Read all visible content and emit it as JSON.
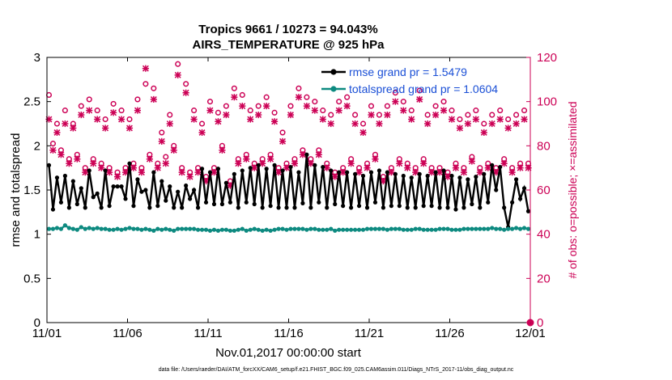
{
  "chart_data": {
    "type": "line",
    "title": "Tropics 9661 / 10273 = 94.043%",
    "subtitle": "AIRS_TEMPERATURE @ 925 hPa",
    "xlabel": "Nov.01,2017 00:00:00 start",
    "ylabel": "rmse and totalspread",
    "y2label": "# of obs: o=possible; ×=assimilated",
    "x_ticks": [
      "11/01",
      "11/06",
      "11/11",
      "11/16",
      "11/21",
      "11/26",
      "12/01"
    ],
    "x_range_days": [
      0,
      30
    ],
    "ylim": [
      0,
      3
    ],
    "y_ticks": [
      "0",
      "0.5",
      "1",
      "1.5",
      "2",
      "2.5",
      "3"
    ],
    "y2lim": [
      0,
      120
    ],
    "y2_ticks": [
      "0",
      "20",
      "40",
      "60",
      "80",
      "100",
      "120"
    ],
    "legend": [
      "rmse grand pr = 1.5479",
      "totalspread grand pr = 1.0604"
    ],
    "footer": "data file: /Users/raeder/DAI/ATM_forcXX/CAM6_setup/f.e21.FHIST_BGC.f09_025.CAM6assim.011/Diags_NTrS_2017-11/obs_diag_output.nc",
    "n_samples": 120,
    "series": [
      {
        "name": "rmse",
        "color": "#000000",
        "values": [
          1.78,
          1.28,
          1.64,
          1.36,
          1.66,
          1.3,
          1.6,
          1.34,
          1.52,
          1.3,
          1.72,
          1.42,
          1.46,
          1.3,
          1.72,
          1.32,
          1.54,
          1.54,
          1.54,
          1.4,
          1.8,
          1.32,
          1.62,
          1.48,
          1.5,
          1.3,
          1.7,
          1.32,
          1.6,
          1.38,
          1.54,
          1.3,
          1.48,
          1.3,
          1.55,
          1.4,
          1.5,
          1.3,
          1.74,
          1.36,
          1.7,
          1.34,
          1.74,
          1.34,
          1.58,
          1.36,
          1.68,
          1.3,
          1.72,
          1.36,
          1.75,
          1.34,
          1.78,
          1.3,
          1.74,
          1.32,
          1.78,
          1.3,
          1.72,
          1.3,
          1.76,
          1.3,
          1.7,
          1.35,
          1.9,
          1.3,
          1.78,
          1.36,
          1.76,
          1.3,
          1.72,
          1.34,
          1.7,
          1.32,
          1.7,
          1.3,
          1.68,
          1.32,
          1.66,
          1.3,
          1.7,
          1.36,
          1.72,
          1.3,
          1.7,
          1.32,
          1.68,
          1.32,
          1.66,
          1.3,
          1.64,
          1.3,
          1.68,
          1.32,
          1.66,
          1.32,
          1.7,
          1.3,
          1.72,
          1.3,
          1.66,
          1.28,
          1.64,
          1.3,
          1.62,
          1.34,
          1.65,
          1.3,
          1.68,
          1.36,
          1.78,
          1.5,
          1.76,
          1.3,
          1.08,
          1.36,
          1.62,
          1.4,
          1.52,
          1.26
        ]
      },
      {
        "name": "totalspread",
        "color": "#0d8a80",
        "values": [
          1.06,
          1.06,
          1.07,
          1.06,
          1.1,
          1.07,
          1.06,
          1.05,
          1.08,
          1.06,
          1.07,
          1.06,
          1.07,
          1.06,
          1.06,
          1.05,
          1.05,
          1.06,
          1.05,
          1.06,
          1.07,
          1.06,
          1.06,
          1.05,
          1.06,
          1.05,
          1.04,
          1.06,
          1.05,
          1.06,
          1.05,
          1.04,
          1.06,
          1.06,
          1.06,
          1.06,
          1.06,
          1.05,
          1.05,
          1.05,
          1.04,
          1.05,
          1.04,
          1.05,
          1.05,
          1.04,
          1.04,
          1.05,
          1.06,
          1.04,
          1.05,
          1.06,
          1.05,
          1.04,
          1.05,
          1.04,
          1.05,
          1.06,
          1.06,
          1.05,
          1.06,
          1.06,
          1.06,
          1.06,
          1.05,
          1.06,
          1.06,
          1.05,
          1.05,
          1.05,
          1.06,
          1.04,
          1.05,
          1.05,
          1.05,
          1.05,
          1.05,
          1.05,
          1.05,
          1.06,
          1.06,
          1.06,
          1.06,
          1.06,
          1.05,
          1.06,
          1.06,
          1.06,
          1.05,
          1.05,
          1.05,
          1.06,
          1.06,
          1.05,
          1.05,
          1.05,
          1.05,
          1.06,
          1.06,
          1.06,
          1.05,
          1.05,
          1.05,
          1.06,
          1.06,
          1.06,
          1.06,
          1.06,
          1.06,
          1.06,
          1.07,
          1.06,
          1.06,
          1.05,
          1.06,
          1.06,
          1.07,
          1.06,
          1.07,
          1.06
        ]
      },
      {
        "name": "possible obs",
        "axis": "right",
        "marker": "o",
        "color": "#cc0055",
        "values": [
          103,
          81,
          90,
          78,
          96,
          74,
          90,
          76,
          98,
          70,
          101,
          74,
          96,
          72,
          92,
          70,
          99,
          68,
          96,
          70,
          92,
          72,
          101,
          70,
          108,
          76,
          106,
          72,
          86,
          75,
          94,
          80,
          117,
          70,
          108,
          68,
          96,
          70,
          90,
          66,
          100,
          70,
          95,
          80,
          98,
          64,
          106,
          74,
          103,
          76,
          96,
          72,
          98,
          74,
          102,
          76,
          95,
          70,
          86,
          72,
          98,
          74,
          106,
          78,
          102,
          74,
          100,
          78,
          96,
          72,
          94,
          68,
          100,
          70,
          102,
          74,
          94,
          70,
          90,
          72,
          98,
          76,
          94,
          66,
          98,
          70,
          104,
          74,
          100,
          72,
          96,
          70,
          105,
          74,
          94,
          70,
          98,
          70,
          100,
          68,
          96,
          72,
          92,
          70,
          94,
          75,
          96,
          70,
          90,
          72,
          94,
          70,
          96,
          74,
          92,
          70,
          94,
          72,
          96,
          72
        ]
      },
      {
        "name": "assimilated obs",
        "axis": "right",
        "marker": "x",
        "color": "#cc0055",
        "values": [
          92,
          78,
          86,
          76,
          90,
          72,
          88,
          74,
          94,
          68,
          96,
          72,
          92,
          70,
          88,
          68,
          95,
          66,
          92,
          68,
          88,
          70,
          96,
          68,
          115,
          74,
          101,
          70,
          82,
          72,
          90,
          78,
          112,
          68,
          104,
          66,
          92,
          68,
          86,
          64,
          96,
          68,
          91,
          78,
          94,
          62,
          102,
          72,
          98,
          74,
          92,
          70,
          94,
          72,
          98,
          74,
          91,
          68,
          82,
          70,
          94,
          72,
          102,
          76,
          98,
          72,
          96,
          76,
          92,
          70,
          90,
          66,
          96,
          68,
          98,
          72,
          90,
          68,
          86,
          70,
          94,
          74,
          90,
          64,
          94,
          68,
          100,
          72,
          96,
          70,
          92,
          68,
          101,
          72,
          90,
          68,
          94,
          68,
          96,
          66,
          92,
          70,
          88,
          68,
          90,
          73,
          92,
          68,
          86,
          70,
          90,
          68,
          92,
          72,
          88,
          68,
          90,
          70,
          92,
          70
        ]
      }
    ]
  }
}
